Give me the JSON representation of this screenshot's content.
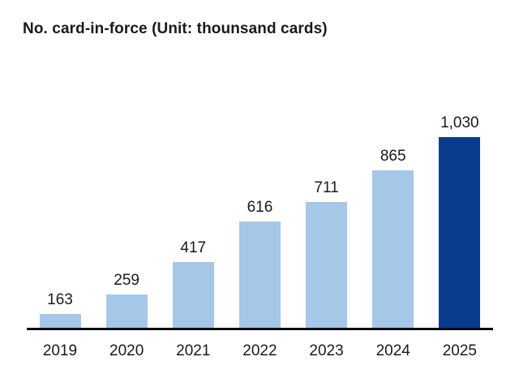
{
  "chart_data": {
    "type": "bar",
    "title": "No. card-in-force (Unit: thounsand cards)",
    "categories": [
      "2019",
      "2020",
      "2021",
      "2022",
      "2023",
      "2024",
      "2025"
    ],
    "values": [
      163,
      259,
      417,
      616,
      711,
      865,
      1030
    ],
    "value_labels": [
      "163",
      "259",
      "417",
      "616",
      "711",
      "865",
      "1,030"
    ],
    "xlabel": "",
    "ylabel": "",
    "ylim": [
      95,
      1030
    ],
    "grid": false,
    "legend": false,
    "data_labels": true,
    "highlight_index": 6,
    "colors": {
      "bar": "#a5c8e9",
      "highlight_bar": "#0a3c8e",
      "axis_line": "#0b0b12",
      "text": "#1a1a1a",
      "background": "#ffffff"
    }
  }
}
